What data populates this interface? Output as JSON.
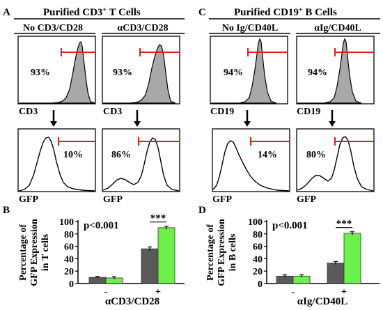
{
  "panels": {
    "A": {
      "letter": "A",
      "title_main": "Purified CD3",
      "title_sup": "+",
      "title_rest": " T Cells",
      "conditions": [
        "No CD3/CD28",
        "αCD3/CD28"
      ],
      "top_axis": "CD3",
      "bottom_axis": "GFP",
      "top_percents": [
        "93%",
        "93%"
      ],
      "bottom_percents": [
        "10%",
        "86%"
      ]
    },
    "C": {
      "letter": "C",
      "title_main": "Purified CD19",
      "title_sup": "+",
      "title_rest": " B Cells",
      "conditions": [
        "No Ig/CD40L",
        "αIg/CD40L"
      ],
      "top_axis": "CD19",
      "bottom_axis": "GFP",
      "top_percents": [
        "94%",
        "94%"
      ],
      "bottom_percents": [
        "14%",
        "80%"
      ]
    },
    "B": {
      "letter": "B"
    },
    "D": {
      "letter": "D"
    }
  },
  "colors": {
    "gray_bar": "#5a5a5a",
    "green_bar": "#6cf04a",
    "gate": "#e01b1b",
    "filled_hist": "#a8a8a8"
  },
  "chart_data": [
    {
      "panel": "B",
      "type": "bar",
      "ylabel": [
        "Percentage of",
        "GFP Expression",
        "in T cells"
      ],
      "xlabel": "αCD3/CD28",
      "categories": [
        "-",
        "+"
      ],
      "series": [
        {
          "values": [
            10,
            56
          ],
          "errors": [
            1.5,
            3
          ]
        },
        {
          "values": [
            9,
            90
          ],
          "errors": [
            2,
            2.5
          ]
        }
      ],
      "ylim": [
        0,
        100
      ],
      "yticks": [
        0,
        20,
        40,
        60,
        80,
        100
      ],
      "annotations": [
        "p<0.001",
        "***"
      ]
    },
    {
      "panel": "D",
      "type": "bar",
      "ylabel": [
        "Percentage of",
        "GFP Expression",
        "in B cells"
      ],
      "xlabel": "αIg/CD40L",
      "categories": [
        "-",
        "+"
      ],
      "series": [
        {
          "values": [
            12,
            33
          ],
          "errors": [
            2,
            2.5
          ]
        },
        {
          "values": [
            12,
            81
          ],
          "errors": [
            2,
            2.5
          ]
        }
      ],
      "ylim": [
        0,
        100
      ],
      "yticks": [
        0,
        20,
        40,
        60,
        80,
        100
      ],
      "annotations": [
        "p<0.001",
        "***"
      ]
    }
  ]
}
